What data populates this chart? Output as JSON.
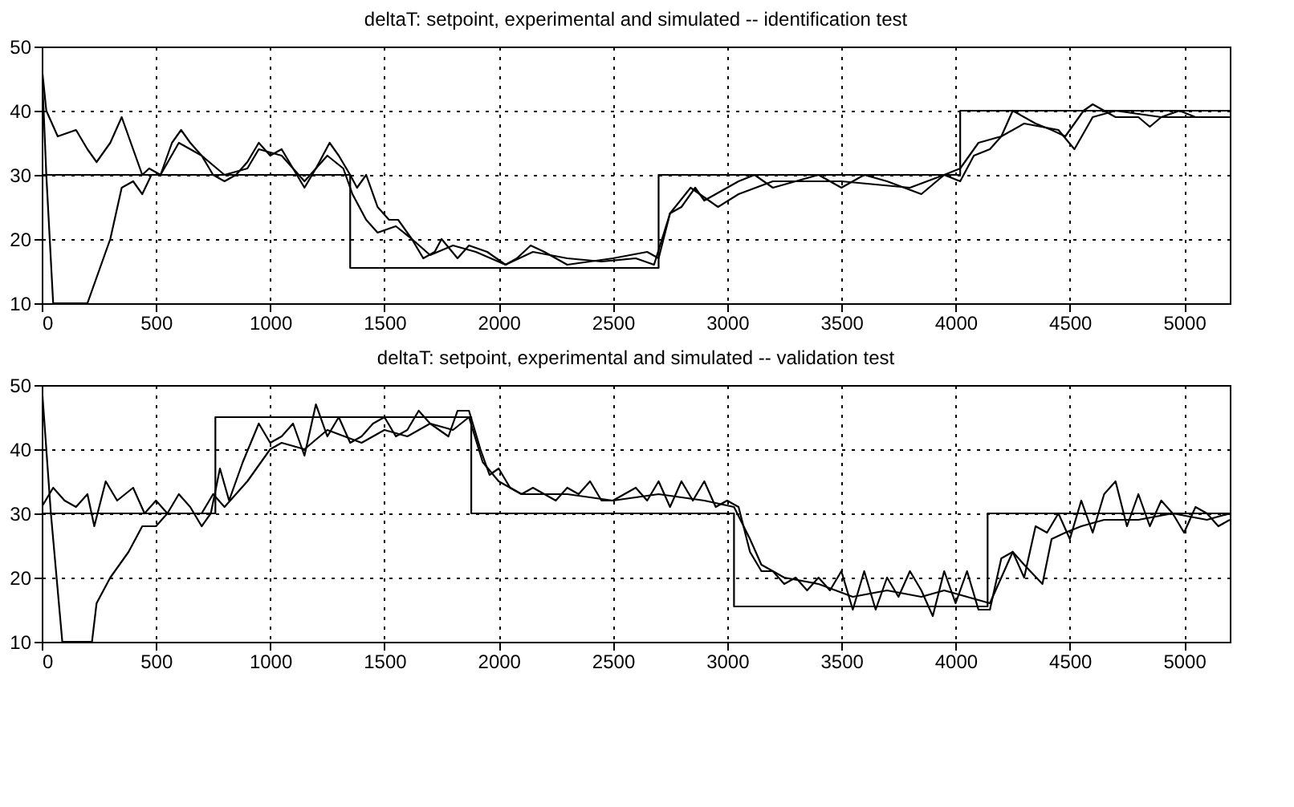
{
  "chart_data": [
    {
      "type": "line",
      "title": "deltaT: setpoint, experimental and simulated -- identification test",
      "xlim": [
        0,
        5200
      ],
      "ylim": [
        10,
        50
      ],
      "xticks": [
        0,
        500,
        1000,
        1500,
        2000,
        2500,
        3000,
        3500,
        4000,
        4500,
        5000
      ],
      "yticks": [
        10,
        20,
        30,
        40,
        50
      ],
      "grid": true,
      "series": [
        {
          "type": "step",
          "color": "#000000",
          "x": [
            0,
            1350,
            2700,
            4020,
            5200
          ],
          "values": [
            30,
            15.5,
            30,
            40,
            40
          ]
        },
        {
          "type": "line",
          "color": "#000000",
          "x": [
            0,
            20,
            70,
            150,
            200,
            240,
            300,
            350,
            400,
            440,
            470,
            520,
            570,
            610,
            650,
            700,
            750,
            800,
            850,
            900,
            950,
            1000,
            1050,
            1100,
            1150,
            1200,
            1260,
            1300,
            1350,
            1380,
            1420,
            1470,
            1520,
            1560,
            1620,
            1670,
            1720,
            1750,
            1820,
            1870,
            1950,
            2030,
            2080,
            2140,
            2200,
            2300,
            2400,
            2500,
            2650,
            2700,
            2750,
            2800,
            2860,
            2900,
            2950,
            3050,
            3120,
            3200,
            3300,
            3400,
            3500,
            3600,
            3700,
            3850,
            3950,
            4020,
            4080,
            4150,
            4200,
            4250,
            4350,
            4420,
            4480,
            4560,
            4600,
            4700,
            4800,
            4850,
            4900,
            4980,
            5050,
            5200
          ],
          "values": [
            47,
            40,
            36,
            37,
            34,
            32,
            35,
            39,
            34,
            30,
            31,
            30,
            35,
            37,
            35,
            33,
            30,
            29,
            30,
            32,
            35,
            33,
            34,
            31,
            28,
            31,
            35,
            33,
            30,
            28,
            30,
            25,
            23,
            23,
            20,
            17,
            18,
            20,
            17,
            19,
            18,
            16,
            17,
            19,
            18,
            16,
            16.5,
            17,
            18,
            17,
            24,
            25,
            28,
            26,
            27,
            29,
            30,
            28,
            29,
            30,
            28,
            30,
            29,
            27,
            30,
            29,
            33,
            34,
            36,
            40,
            38,
            37,
            36,
            40,
            41,
            39,
            39,
            37.5,
            39,
            40,
            39,
            39
          ]
        },
        {
          "type": "line",
          "color": "#000000",
          "x": [
            0,
            20,
            50,
            200,
            250,
            300,
            350,
            400,
            440,
            480,
            520,
            600,
            700,
            800,
            900,
            950,
            1050,
            1150,
            1250,
            1320,
            1360,
            1420,
            1470,
            1550,
            1620,
            1700,
            1800,
            1900,
            2030,
            2150,
            2300,
            2450,
            2600,
            2680,
            2750,
            2840,
            2920,
            2960,
            3050,
            3200,
            3500,
            3800,
            3950,
            4020,
            4100,
            4200,
            4300,
            4450,
            4520,
            4600,
            4700,
            4900,
            5200
          ],
          "values": [
            47,
            30,
            10,
            10,
            15,
            20,
            28,
            29,
            27,
            30,
            30,
            35,
            33,
            30,
            31,
            34,
            33,
            29,
            33,
            31,
            27,
            23,
            21,
            22,
            20,
            17.5,
            19,
            18,
            16,
            18,
            17,
            16.5,
            17,
            16,
            24,
            28,
            26,
            25,
            27,
            29,
            29,
            28,
            30,
            31,
            35,
            36,
            38,
            37,
            34,
            39,
            40,
            39,
            39
          ]
        }
      ]
    },
    {
      "type": "line",
      "title": "deltaT: setpoint, experimental and simulated -- validation test",
      "xlim": [
        0,
        5200
      ],
      "ylim": [
        10,
        50
      ],
      "xticks": [
        0,
        500,
        1000,
        1500,
        2000,
        2500,
        3000,
        3500,
        4000,
        4500,
        5000
      ],
      "yticks": [
        10,
        20,
        30,
        40,
        50
      ],
      "grid": true,
      "series": [
        {
          "type": "step",
          "color": "#000000",
          "x": [
            0,
            760,
            1880,
            3030,
            4140,
            5200
          ],
          "values": [
            30,
            45,
            30,
            15.5,
            30,
            30
          ]
        },
        {
          "type": "line",
          "color": "#000000",
          "x": [
            0,
            50,
            100,
            150,
            200,
            230,
            280,
            330,
            400,
            450,
            500,
            550,
            600,
            650,
            700,
            740,
            780,
            820,
            880,
            950,
            1000,
            1050,
            1100,
            1150,
            1200,
            1250,
            1300,
            1350,
            1400,
            1450,
            1500,
            1550,
            1600,
            1650,
            1700,
            1780,
            1820,
            1870,
            1920,
            1960,
            2000,
            2050,
            2100,
            2150,
            2250,
            2300,
            2350,
            2400,
            2450,
            2500,
            2550,
            2600,
            2650,
            2700,
            2750,
            2800,
            2850,
            2900,
            2950,
            3000,
            3050,
            3100,
            3150,
            3200,
            3250,
            3300,
            3350,
            3400,
            3450,
            3500,
            3550,
            3600,
            3650,
            3700,
            3750,
            3800,
            3850,
            3900,
            3950,
            4000,
            4050,
            4100,
            4150,
            4200,
            4250,
            4300,
            4350,
            4400,
            4450,
            4500,
            4550,
            4600,
            4650,
            4700,
            4750,
            4800,
            4850,
            4900,
            4950,
            5000,
            5050,
            5100,
            5150,
            5200
          ],
          "values": [
            31,
            34,
            32,
            31,
            33,
            28,
            35,
            32,
            34,
            30,
            32,
            30,
            33,
            31,
            28,
            30,
            37,
            32,
            38,
            44,
            41,
            42,
            44,
            39,
            47,
            42,
            45,
            41,
            42,
            44,
            45,
            42,
            43,
            46,
            44,
            42,
            46,
            46,
            40,
            36,
            37,
            34,
            33,
            34,
            32,
            34,
            33,
            35,
            32,
            32,
            33,
            34,
            32,
            35,
            31,
            35,
            32,
            35,
            31,
            32,
            31,
            24,
            21,
            21,
            19,
            20,
            18,
            20,
            18,
            21,
            15,
            21,
            15,
            20,
            17,
            21,
            18,
            14,
            21,
            16,
            21,
            15,
            15,
            23,
            24,
            20,
            28,
            27,
            30,
            26,
            32,
            27,
            33,
            35,
            28,
            33,
            28,
            32,
            30,
            27,
            31,
            30,
            28,
            29
          ]
        },
        {
          "type": "line",
          "color": "#000000",
          "x": [
            0,
            40,
            90,
            220,
            240,
            300,
            380,
            440,
            500,
            550,
            600,
            700,
            750,
            800,
            900,
            1000,
            1050,
            1150,
            1250,
            1400,
            1500,
            1600,
            1700,
            1800,
            1870,
            1930,
            2000,
            2100,
            2300,
            2500,
            2700,
            2900,
            3030,
            3100,
            3150,
            3250,
            3400,
            3550,
            3700,
            3850,
            3950,
            4050,
            4150,
            4200,
            4250,
            4300,
            4380,
            4420,
            4480,
            4550,
            4650,
            4800,
            4950,
            5100,
            5200
          ],
          "values": [
            50,
            30,
            10,
            10,
            16,
            20,
            24,
            28,
            28,
            30,
            30,
            30,
            33,
            31,
            35,
            40,
            41,
            40,
            43,
            41,
            43,
            42,
            44,
            43,
            45,
            38,
            35,
            33,
            33,
            32,
            33,
            32,
            31,
            26,
            22,
            20,
            19,
            17,
            18,
            17,
            18,
            17,
            16,
            20,
            24,
            22,
            19,
            26,
            27,
            28,
            29,
            29,
            30,
            29,
            30
          ]
        }
      ]
    }
  ]
}
